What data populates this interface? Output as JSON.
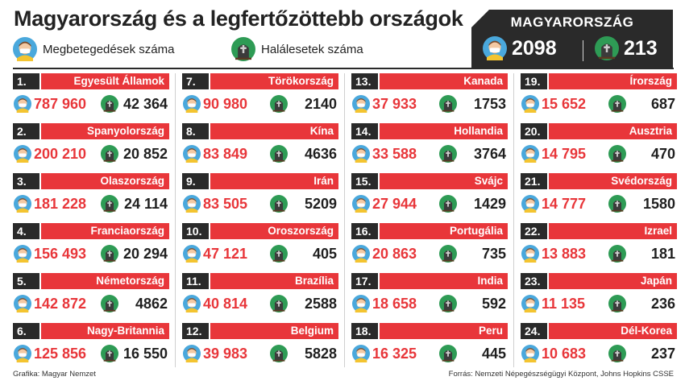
{
  "title": "Magyarország és a legfertőzöttebb országok",
  "legend": {
    "sick_label": "Megbetegedések száma",
    "death_label": "Halálesetek száma"
  },
  "hungary": {
    "label": "MAGYARORSZÁG",
    "cases": "2098",
    "deaths": "213"
  },
  "countries": [
    {
      "rank": "1.",
      "name": "Egyesült Államok",
      "cases": "787 960",
      "deaths": "42 364"
    },
    {
      "rank": "2.",
      "name": "Spanyolország",
      "cases": "200 210",
      "deaths": "20 852"
    },
    {
      "rank": "3.",
      "name": "Olaszország",
      "cases": "181 228",
      "deaths": "24 114"
    },
    {
      "rank": "4.",
      "name": "Franciaország",
      "cases": "156 493",
      "deaths": "20 294"
    },
    {
      "rank": "5.",
      "name": "Németország",
      "cases": "142 872",
      "deaths": "4862"
    },
    {
      "rank": "6.",
      "name": "Nagy-Britannia",
      "cases": "125 856",
      "deaths": "16 550"
    },
    {
      "rank": "7.",
      "name": "Törökország",
      "cases": "90 980",
      "deaths": "2140"
    },
    {
      "rank": "8.",
      "name": "Kína",
      "cases": "83 849",
      "deaths": "4636"
    },
    {
      "rank": "9.",
      "name": "Irán",
      "cases": "83 505",
      "deaths": "5209"
    },
    {
      "rank": "10.",
      "name": "Oroszország",
      "cases": "47 121",
      "deaths": "405"
    },
    {
      "rank": "11.",
      "name": "Brazília",
      "cases": "40 814",
      "deaths": "2588"
    },
    {
      "rank": "12.",
      "name": "Belgium",
      "cases": "39 983",
      "deaths": "5828"
    },
    {
      "rank": "13.",
      "name": "Kanada",
      "cases": "37 933",
      "deaths": "1753"
    },
    {
      "rank": "14.",
      "name": "Hollandia",
      "cases": "33 588",
      "deaths": "3764"
    },
    {
      "rank": "15.",
      "name": "Svájc",
      "cases": "27 944",
      "deaths": "1429"
    },
    {
      "rank": "16.",
      "name": "Portugália",
      "cases": "20 863",
      "deaths": "735"
    },
    {
      "rank": "17.",
      "name": "India",
      "cases": "18 658",
      "deaths": "592"
    },
    {
      "rank": "18.",
      "name": "Peru",
      "cases": "16 325",
      "deaths": "445"
    },
    {
      "rank": "19.",
      "name": "Írország",
      "cases": "15 652",
      "deaths": "687"
    },
    {
      "rank": "20.",
      "name": "Ausztria",
      "cases": "14 795",
      "deaths": "470"
    },
    {
      "rank": "21.",
      "name": "Svédország",
      "cases": "14 777",
      "deaths": "1580"
    },
    {
      "rank": "22.",
      "name": "Izrael",
      "cases": "13 883",
      "deaths": "181"
    },
    {
      "rank": "23.",
      "name": "Japán",
      "cases": "11 135",
      "deaths": "236"
    },
    {
      "rank": "24.",
      "name": "Dél-Korea",
      "cases": "10 683",
      "deaths": "237"
    }
  ],
  "icons": {
    "sick": "sick-person-icon",
    "death": "grave-icon"
  },
  "colors": {
    "accent_red": "#e8363a",
    "dark": "#2a2a2a",
    "sick_blue": "#4aa8dc",
    "grave_green": "#2e9b55"
  },
  "footer": {
    "credit": "Grafika: Magyar Nemzet",
    "source": "Forrás: Nemzeti Népegészségügyi Központ, Johns Hopkins CSSE"
  }
}
